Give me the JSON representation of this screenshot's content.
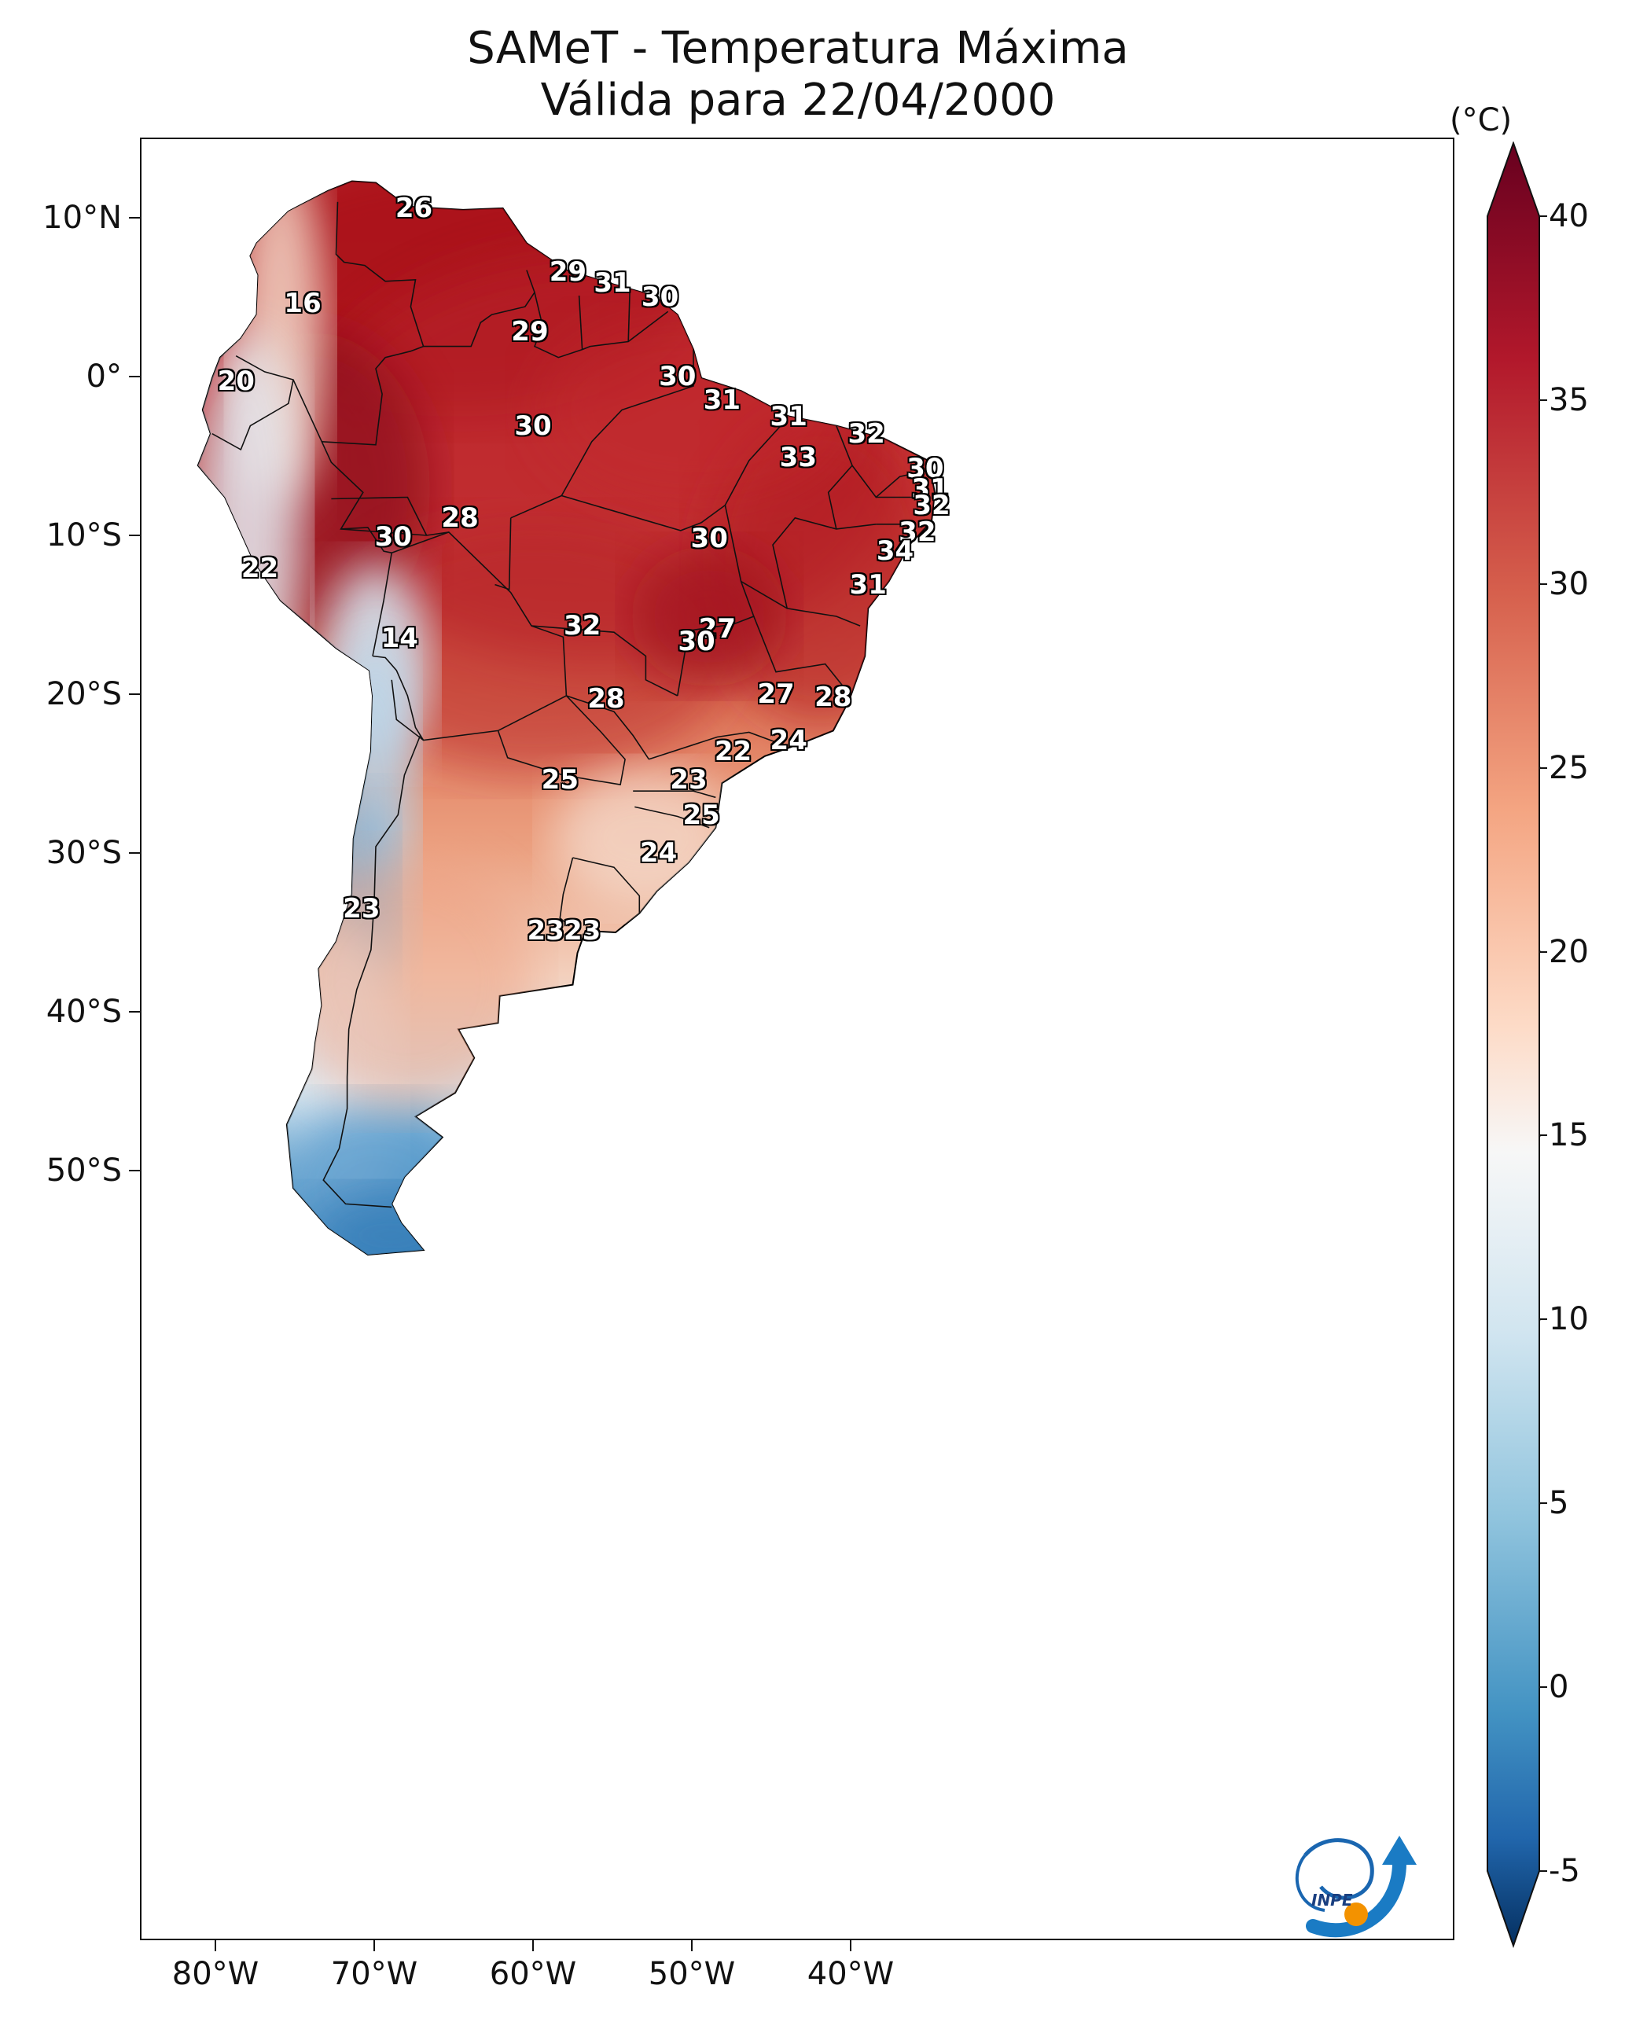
{
  "title": "SAMeT - Temperatura Máxima",
  "subtitle": "Válida para 22/04/2000",
  "colorbar": {
    "unit": "(°C)",
    "ticks": [
      "40",
      "35",
      "30",
      "25",
      "20",
      "15",
      "10",
      "5",
      "0",
      "-5"
    ],
    "range": [
      -5,
      40
    ],
    "colors": {
      "cold": "#053061",
      "mid": "#f7f7f7",
      "hot": "#67001f"
    }
  },
  "axes": {
    "lat_labels": [
      "10°N",
      "0°",
      "10°S",
      "20°S",
      "30°S",
      "40°S",
      "50°S"
    ],
    "lon_labels": [
      "80°W",
      "70°W",
      "60°W",
      "50°W",
      "40°W"
    ]
  },
  "contour_labels": [
    {
      "text": "26",
      "lon": -67.5,
      "lat": 10.6
    },
    {
      "text": "16",
      "lon": -74.5,
      "lat": 4.6
    },
    {
      "text": "29",
      "lon": -57.8,
      "lat": 6.6
    },
    {
      "text": "31",
      "lon": -55.0,
      "lat": 5.9
    },
    {
      "text": "30",
      "lon": -52.0,
      "lat": 5.0
    },
    {
      "text": "29",
      "lon": -60.2,
      "lat": 2.8
    },
    {
      "text": "20",
      "lon": -78.7,
      "lat": -0.3
    },
    {
      "text": "30",
      "lon": -50.9,
      "lat": 0.0
    },
    {
      "text": "31",
      "lon": -48.1,
      "lat": -1.5
    },
    {
      "text": "31",
      "lon": -43.9,
      "lat": -2.5
    },
    {
      "text": "30",
      "lon": -60.0,
      "lat": -3.1
    },
    {
      "text": "32",
      "lon": -39.0,
      "lat": -3.6
    },
    {
      "text": "33",
      "lon": -43.3,
      "lat": -5.1
    },
    {
      "text": "30",
      "lon": -35.3,
      "lat": -5.8
    },
    {
      "text": "31",
      "lon": -35.0,
      "lat": -7.1
    },
    {
      "text": "32",
      "lon": -34.9,
      "lat": -8.1
    },
    {
      "text": "28",
      "lon": -64.6,
      "lat": -8.9
    },
    {
      "text": "30",
      "lon": -68.8,
      "lat": -10.1
    },
    {
      "text": "30",
      "lon": -48.9,
      "lat": -10.2
    },
    {
      "text": "32",
      "lon": -35.8,
      "lat": -9.8
    },
    {
      "text": "34",
      "lon": -37.2,
      "lat": -11.0
    },
    {
      "text": "22",
      "lon": -77.2,
      "lat": -12.1
    },
    {
      "text": "31",
      "lon": -38.9,
      "lat": -13.1
    },
    {
      "text": "14",
      "lon": -68.4,
      "lat": -16.5
    },
    {
      "text": "32",
      "lon": -56.9,
      "lat": -15.7
    },
    {
      "text": "27",
      "lon": -48.4,
      "lat": -15.9
    },
    {
      "text": "30",
      "lon": -49.7,
      "lat": -16.7
    },
    {
      "text": "28",
      "lon": -55.4,
      "lat": -20.3
    },
    {
      "text": "27",
      "lon": -44.7,
      "lat": -20.0
    },
    {
      "text": "28",
      "lon": -41.1,
      "lat": -20.2
    },
    {
      "text": "24",
      "lon": -43.9,
      "lat": -22.9
    },
    {
      "text": "22",
      "lon": -47.4,
      "lat": -23.6
    },
    {
      "text": "25",
      "lon": -58.3,
      "lat": -25.4
    },
    {
      "text": "23",
      "lon": -50.2,
      "lat": -25.4
    },
    {
      "text": "25",
      "lon": -49.4,
      "lat": -27.6
    },
    {
      "text": "24",
      "lon": -52.1,
      "lat": -30.0
    },
    {
      "text": "23",
      "lon": -70.8,
      "lat": -33.5
    },
    {
      "text": "23",
      "lon": -59.2,
      "lat": -34.9
    },
    {
      "text": "23",
      "lon": -56.9,
      "lat": -34.9
    }
  ],
  "logo": {
    "text": "INPE"
  }
}
